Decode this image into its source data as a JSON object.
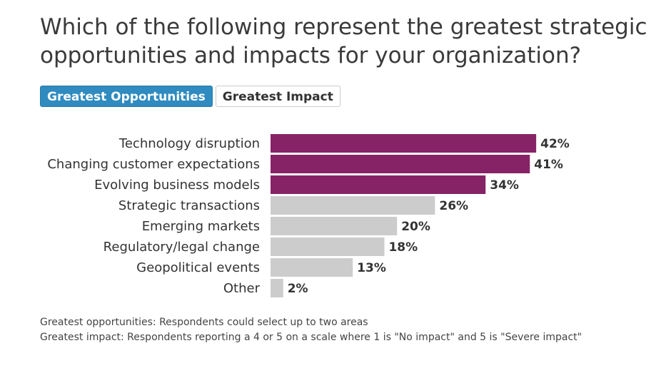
{
  "title": "Which of the following represent the greatest strategic opportunities and impacts for your organization?",
  "tabs": [
    {
      "label": "Greatest Opportunities",
      "active": true
    },
    {
      "label": "Greatest Impact",
      "active": false
    }
  ],
  "chart_data": {
    "type": "bar",
    "orientation": "horizontal",
    "title": "",
    "xlabel": "",
    "ylabel": "",
    "xlim": [
      0,
      100
    ],
    "grid": false,
    "categories": [
      "Technology disruption",
      "Changing customer expectations",
      "Evolving business models",
      "Strategic transactions",
      "Emerging markets",
      "Regulatory/legal change",
      "Geopolitical events",
      "Other"
    ],
    "values": [
      42,
      41,
      34,
      26,
      20,
      18,
      13,
      2
    ],
    "value_labels": [
      "42%",
      "41%",
      "34%",
      "26%",
      "20%",
      "18%",
      "13%",
      "2%"
    ],
    "highlighted": [
      true,
      true,
      true,
      false,
      false,
      false,
      false,
      false
    ]
  },
  "colors": {
    "highlight": "#862366",
    "default": "#cccccc",
    "tab_active": "#2f8bc0"
  },
  "footnotes": {
    "line1": "Greatest opportunities: Respondents could select up to two areas",
    "line2": "Greatest impact: Respondents reporting a 4 or 5 on a scale where 1 is \"No impact\" and 5 is \"Severe impact\""
  }
}
